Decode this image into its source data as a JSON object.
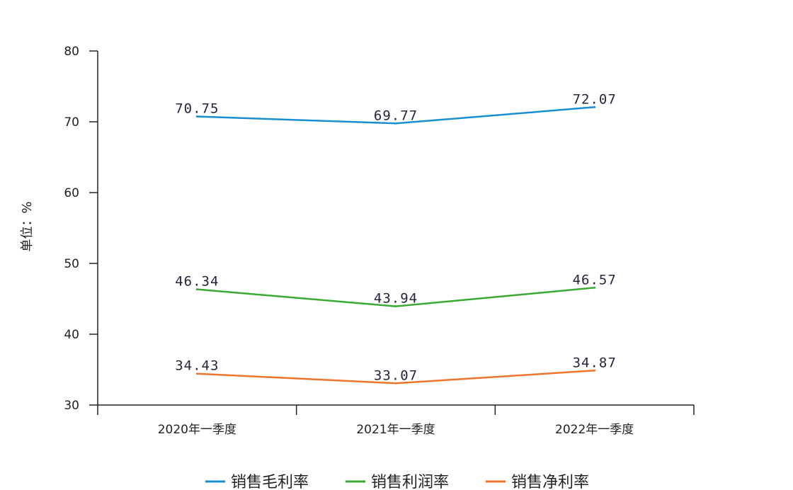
{
  "chart_data": {
    "type": "line",
    "title": "",
    "xlabel": "",
    "ylabel": "单位：%",
    "categories": [
      "2020年一季度",
      "2021年一季度",
      "2022年一季度"
    ],
    "ylim": [
      30,
      80
    ],
    "yticks": [
      30,
      40,
      50,
      60,
      70,
      80
    ],
    "grid": false,
    "legend_position": "bottom",
    "series": [
      {
        "name": "销售毛利率",
        "color": "#1a8fd0",
        "values": [
          70.75,
          69.77,
          72.07
        ],
        "labels": [
          "70.75",
          "69.77",
          "72.07"
        ]
      },
      {
        "name": "销售利润率",
        "color": "#3aaa35",
        "values": [
          46.34,
          43.94,
          46.57
        ],
        "labels": [
          "46.34",
          "43.94",
          "46.57"
        ]
      },
      {
        "name": "销售净利率",
        "color": "#f0742a",
        "values": [
          34.43,
          33.07,
          34.87
        ],
        "labels": [
          "34.43",
          "33.07",
          "34.87"
        ]
      }
    ]
  }
}
